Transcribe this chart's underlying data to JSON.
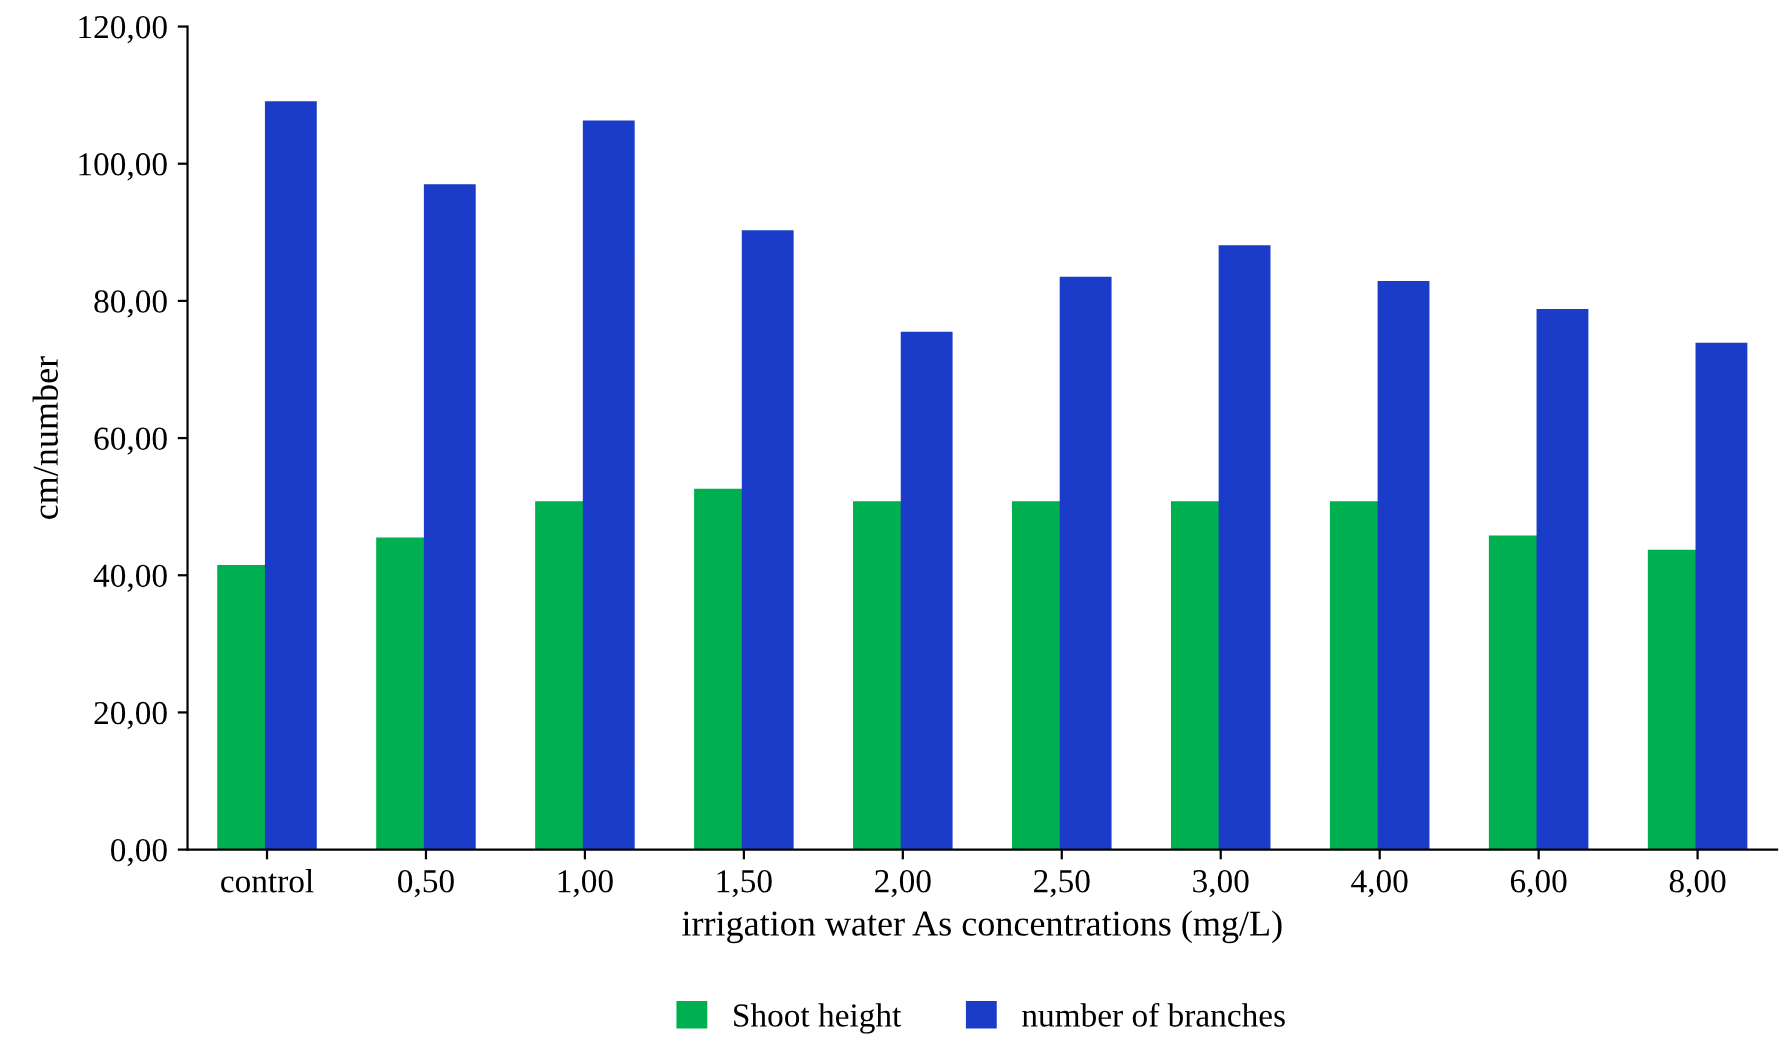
{
  "chart_data": {
    "type": "bar",
    "xlabel": "irrigation water As concentrations (mg/L)",
    "ylabel": "cm/number",
    "categories": [
      "control",
      "0,50",
      "1,00",
      "1,50",
      "2,00",
      "2,50",
      "3,00",
      "4,00",
      "6,00",
      "8,00"
    ],
    "series": [
      {
        "name": "Shoot height",
        "color": "#00b050",
        "values": [
          41.2,
          45.2,
          50.5,
          52.3,
          50.5,
          50.5,
          50.5,
          50.5,
          45.5,
          43.4
        ]
      },
      {
        "name": "number of branches",
        "color": "#1a3cc8",
        "values": [
          108.8,
          96.7,
          106.0,
          90.0,
          75.2,
          83.2,
          87.8,
          82.6,
          78.5,
          73.6
        ]
      }
    ],
    "ylim": [
      0,
      120
    ],
    "yticks": [
      {
        "value": 0,
        "label": "0,00"
      },
      {
        "value": 20,
        "label": "20,00"
      },
      {
        "value": 40,
        "label": "40,00"
      },
      {
        "value": 60,
        "label": "60,00"
      },
      {
        "value": 80,
        "label": "80,00"
      },
      {
        "value": 100,
        "label": "100,00"
      },
      {
        "value": 120,
        "label": "120,00"
      }
    ],
    "grid": false,
    "legend": "bottom"
  }
}
